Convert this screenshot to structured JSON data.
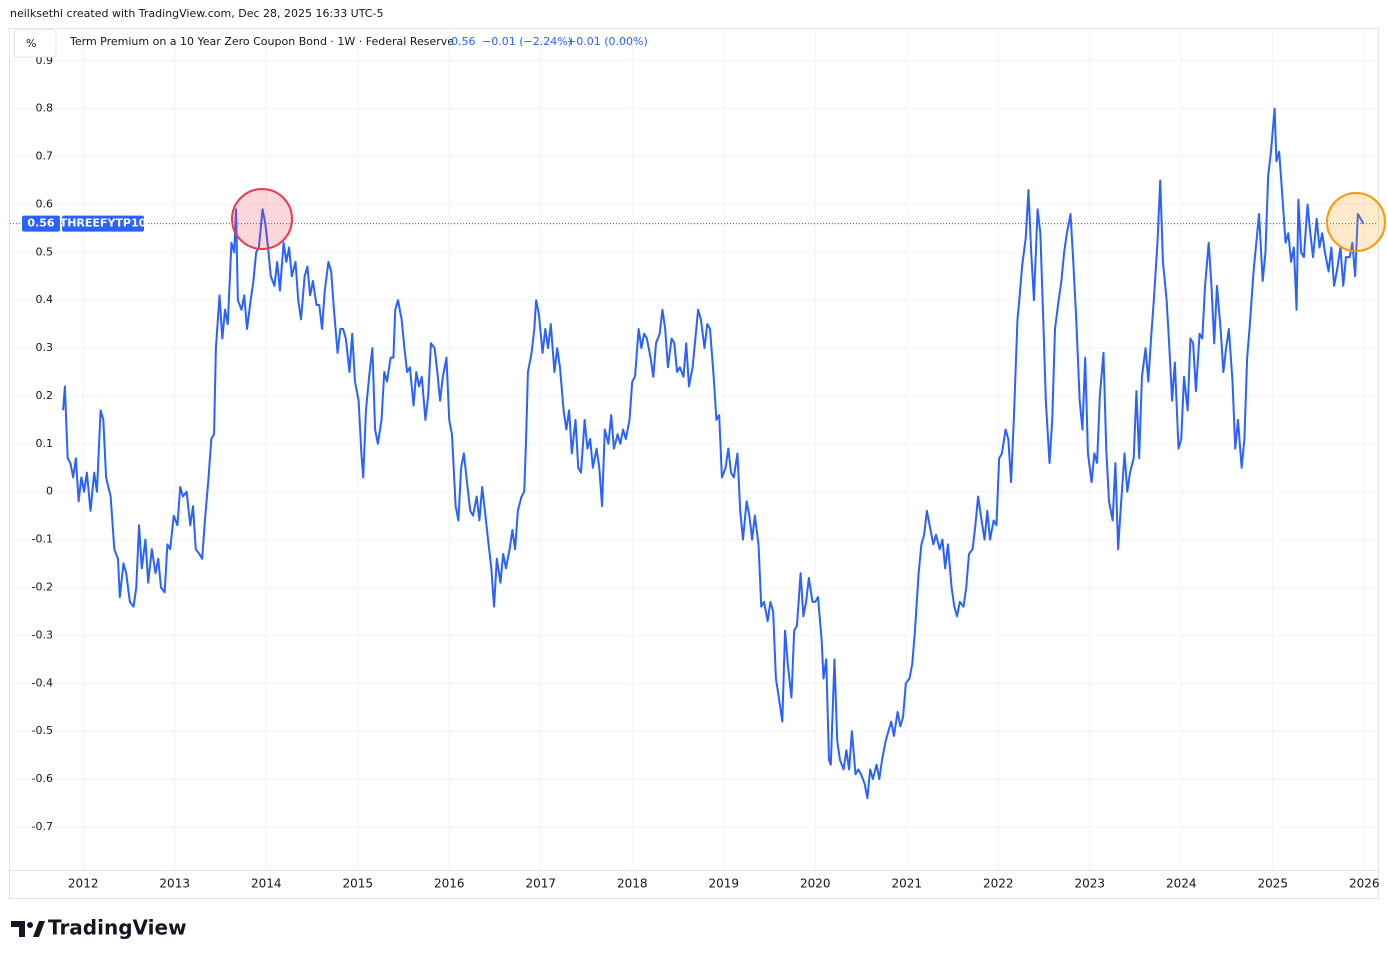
{
  "header": {
    "credit": "neilksethi created with TradingView.com, Dec 28, 2025 16:33 UTC-5"
  },
  "chart_data": {
    "type": "line",
    "unit_label": "%",
    "title": "Term Premium on a 10 Year Zero Coupon Bond · 1W · Federal Reserve",
    "last_value": 0.56,
    "change": "−0.01 (−2.24%)",
    "change_2": "+0.01 (0.00%)",
    "x": [
      2011.78,
      2011.8,
      2011.83,
      2011.86,
      2011.89,
      2011.92,
      2011.95,
      2011.98,
      2012.01,
      2012.04,
      2012.08,
      2012.12,
      2012.15,
      2012.19,
      2012.22,
      2012.25,
      2012.3,
      2012.34,
      2012.38,
      2012.4,
      2012.44,
      2012.47,
      2012.51,
      2012.55,
      2012.58,
      2012.61,
      2012.64,
      2012.68,
      2012.71,
      2012.75,
      2012.79,
      2012.82,
      2012.85,
      2012.89,
      2012.92,
      2012.95,
      2012.99,
      2013.03,
      2013.06,
      2013.09,
      2013.13,
      2013.17,
      2013.2,
      2013.23,
      2013.27,
      2013.3,
      2013.33,
      2013.37,
      2013.4,
      2013.43,
      2013.45,
      2013.49,
      2013.52,
      2013.55,
      2013.58,
      2013.62,
      2013.65,
      2013.67,
      2013.69,
      2013.73,
      2013.76,
      2013.79,
      2013.83,
      2013.86,
      2013.89,
      2013.92,
      2013.96,
      2013.99,
      2014.02,
      2014.05,
      2014.09,
      2014.12,
      2014.15,
      2014.19,
      2014.22,
      2014.25,
      2014.28,
      2014.32,
      2014.35,
      2014.38,
      2014.42,
      2014.45,
      2014.48,
      2014.51,
      2014.55,
      2014.58,
      2014.61,
      2014.64,
      2014.68,
      2014.71,
      2014.74,
      2014.78,
      2014.81,
      2014.84,
      2014.87,
      2014.91,
      2014.94,
      2014.97,
      2015.01,
      2015.04,
      2015.06,
      2015.09,
      2015.13,
      2015.16,
      2015.19,
      2015.22,
      2015.26,
      2015.29,
      2015.32,
      2015.36,
      2015.39,
      2015.41,
      2015.44,
      2015.48,
      2015.51,
      2015.54,
      2015.57,
      2015.61,
      2015.64,
      2015.67,
      2015.7,
      2015.74,
      2015.77,
      2015.8,
      2015.84,
      2015.87,
      2015.9,
      2015.93,
      2015.97,
      2016.0,
      2016.03,
      2016.07,
      2016.1,
      2016.13,
      2016.16,
      2016.2,
      2016.23,
      2016.26,
      2016.3,
      2016.33,
      2016.36,
      2016.39,
      2016.43,
      2016.46,
      2016.49,
      2016.52,
      2016.56,
      2016.59,
      2016.62,
      2016.66,
      2016.69,
      2016.72,
      2016.75,
      2016.79,
      2016.82,
      2016.84,
      2016.86,
      2016.9,
      2016.93,
      2016.95,
      2016.98,
      2017.02,
      2017.05,
      2017.08,
      2017.11,
      2017.15,
      2017.18,
      2017.21,
      2017.25,
      2017.28,
      2017.31,
      2017.34,
      2017.38,
      2017.41,
      2017.44,
      2017.48,
      2017.51,
      2017.54,
      2017.57,
      2017.61,
      2017.64,
      2017.67,
      2017.7,
      2017.74,
      2017.77,
      2017.8,
      2017.84,
      2017.87,
      2017.9,
      2017.93,
      2017.97,
      2018.0,
      2018.03,
      2018.07,
      2018.1,
      2018.13,
      2018.16,
      2018.2,
      2018.23,
      2018.26,
      2018.3,
      2018.33,
      2018.36,
      2018.39,
      2018.43,
      2018.46,
      2018.49,
      2018.52,
      2018.56,
      2018.59,
      2018.62,
      2018.66,
      2018.69,
      2018.72,
      2018.75,
      2018.79,
      2018.82,
      2018.85,
      2018.89,
      2018.92,
      2018.95,
      2018.98,
      2019.02,
      2019.05,
      2019.08,
      2019.11,
      2019.15,
      2019.18,
      2019.21,
      2019.25,
      2019.28,
      2019.31,
      2019.34,
      2019.38,
      2019.41,
      2019.44,
      2019.48,
      2019.51,
      2019.54,
      2019.57,
      2019.61,
      2019.64,
      2019.67,
      2019.7,
      2019.74,
      2019.77,
      2019.8,
      2019.84,
      2019.87,
      2019.9,
      2019.93,
      2019.97,
      2020.0,
      2020.03,
      2020.07,
      2020.09,
      2020.12,
      2020.15,
      2020.17,
      2020.21,
      2020.24,
      2020.27,
      2020.31,
      2020.34,
      2020.37,
      2020.4,
      2020.44,
      2020.47,
      2020.5,
      2020.54,
      2020.57,
      2020.6,
      2020.63,
      2020.67,
      2020.7,
      2020.73,
      2020.77,
      2020.8,
      2020.83,
      2020.86,
      2020.9,
      2020.93,
      2020.96,
      2020.99,
      2021.03,
      2021.06,
      2021.09,
      2021.13,
      2021.16,
      2021.19,
      2021.22,
      2021.26,
      2021.29,
      2021.32,
      2021.36,
      2021.39,
      2021.42,
      2021.45,
      2021.49,
      2021.52,
      2021.55,
      2021.58,
      2021.62,
      2021.65,
      2021.68,
      2021.72,
      2021.75,
      2021.78,
      2021.81,
      2021.85,
      2021.88,
      2021.91,
      2021.95,
      2021.98,
      2022.01,
      2022.04,
      2022.08,
      2022.11,
      2022.14,
      2022.17,
      2022.21,
      2022.23,
      2022.26,
      2022.3,
      2022.33,
      2022.36,
      2022.39,
      2022.43,
      2022.46,
      2022.49,
      2022.52,
      2022.56,
      2022.59,
      2022.62,
      2022.66,
      2022.69,
      2022.72,
      2022.75,
      2022.79,
      2022.82,
      2022.85,
      2022.89,
      2022.92,
      2022.95,
      2022.98,
      2023.02,
      2023.05,
      2023.08,
      2023.11,
      2023.15,
      2023.18,
      2023.21,
      2023.25,
      2023.28,
      2023.31,
      2023.34,
      2023.38,
      2023.41,
      2023.44,
      2023.48,
      2023.51,
      2023.54,
      2023.57,
      2023.61,
      2023.64,
      2023.67,
      2023.7,
      2023.74,
      2023.77,
      2023.8,
      2023.84,
      2023.87,
      2023.9,
      2023.93,
      2023.97,
      2024.0,
      2024.03,
      2024.07,
      2024.1,
      2024.13,
      2024.16,
      2024.2,
      2024.23,
      2024.26,
      2024.3,
      2024.33,
      2024.36,
      2024.39,
      2024.43,
      2024.46,
      2024.49,
      2024.52,
      2024.56,
      2024.59,
      2024.62,
      2024.66,
      2024.69,
      2024.72,
      2024.75,
      2024.79,
      2024.82,
      2024.85,
      2024.89,
      2024.92,
      2024.95,
      2024.98,
      2025.02,
      2025.04,
      2025.07,
      2025.1,
      2025.14,
      2025.17,
      2025.2,
      2025.23,
      2025.26,
      2025.28,
      2025.31,
      2025.34,
      2025.38,
      2025.41,
      2025.44,
      2025.48,
      2025.51,
      2025.54,
      2025.57,
      2025.61,
      2025.64,
      2025.67,
      2025.7,
      2025.74,
      2025.77,
      2025.8,
      2025.84,
      2025.87,
      2025.9,
      2025.93,
      2025.96,
      2025.99
    ],
    "series": [
      {
        "name": "THREEFYTP10",
        "color": "#2962ff",
        "values": [
          0.17,
          0.22,
          0.07,
          0.06,
          0.03,
          0.07,
          -0.02,
          0.03,
          0.0,
          0.04,
          -0.04,
          0.04,
          0.0,
          0.17,
          0.15,
          0.03,
          -0.01,
          -0.12,
          -0.14,
          -0.22,
          -0.15,
          -0.17,
          -0.23,
          -0.24,
          -0.2,
          -0.07,
          -0.16,
          -0.1,
          -0.19,
          -0.12,
          -0.17,
          -0.14,
          -0.2,
          -0.21,
          -0.11,
          -0.12,
          -0.05,
          -0.07,
          0.01,
          -0.01,
          0.0,
          -0.07,
          -0.03,
          -0.12,
          -0.13,
          -0.14,
          -0.06,
          0.03,
          0.11,
          0.12,
          0.3,
          0.41,
          0.32,
          0.38,
          0.35,
          0.52,
          0.5,
          0.59,
          0.4,
          0.38,
          0.41,
          0.34,
          0.4,
          0.44,
          0.5,
          0.51,
          0.59,
          0.56,
          0.51,
          0.45,
          0.43,
          0.48,
          0.42,
          0.52,
          0.48,
          0.51,
          0.45,
          0.48,
          0.4,
          0.36,
          0.45,
          0.47,
          0.41,
          0.44,
          0.39,
          0.39,
          0.34,
          0.42,
          0.48,
          0.46,
          0.38,
          0.29,
          0.34,
          0.34,
          0.32,
          0.25,
          0.33,
          0.23,
          0.19,
          0.08,
          0.03,
          0.17,
          0.25,
          0.3,
          0.13,
          0.1,
          0.15,
          0.25,
          0.23,
          0.28,
          0.28,
          0.38,
          0.4,
          0.36,
          0.3,
          0.25,
          0.26,
          0.18,
          0.25,
          0.22,
          0.24,
          0.15,
          0.2,
          0.31,
          0.3,
          0.25,
          0.19,
          0.24,
          0.28,
          0.15,
          0.12,
          -0.03,
          -0.06,
          0.05,
          0.08,
          0.01,
          -0.04,
          -0.05,
          -0.01,
          -0.06,
          0.01,
          -0.04,
          -0.11,
          -0.16,
          -0.24,
          -0.14,
          -0.19,
          -0.13,
          -0.16,
          -0.12,
          -0.08,
          -0.12,
          -0.04,
          -0.01,
          0.0,
          0.11,
          0.25,
          0.29,
          0.34,
          0.4,
          0.37,
          0.29,
          0.34,
          0.3,
          0.35,
          0.25,
          0.3,
          0.26,
          0.17,
          0.13,
          0.17,
          0.08,
          0.15,
          0.05,
          0.04,
          0.15,
          0.09,
          0.11,
          0.05,
          0.09,
          0.05,
          -0.03,
          0.13,
          0.1,
          0.16,
          0.09,
          0.12,
          0.1,
          0.13,
          0.11,
          0.15,
          0.23,
          0.24,
          0.34,
          0.3,
          0.33,
          0.32,
          0.28,
          0.24,
          0.31,
          0.33,
          0.38,
          0.34,
          0.26,
          0.32,
          0.31,
          0.25,
          0.26,
          0.24,
          0.31,
          0.22,
          0.26,
          0.32,
          0.38,
          0.36,
          0.3,
          0.35,
          0.34,
          0.24,
          0.15,
          0.16,
          0.03,
          0.05,
          0.09,
          0.04,
          0.03,
          0.08,
          -0.04,
          -0.1,
          -0.02,
          -0.05,
          -0.1,
          -0.05,
          -0.11,
          -0.24,
          -0.23,
          -0.27,
          -0.23,
          -0.25,
          -0.39,
          -0.44,
          -0.48,
          -0.29,
          -0.36,
          -0.43,
          -0.29,
          -0.28,
          -0.17,
          -0.26,
          -0.23,
          -0.18,
          -0.23,
          -0.23,
          -0.22,
          -0.31,
          -0.39,
          -0.35,
          -0.56,
          -0.57,
          -0.35,
          -0.52,
          -0.56,
          -0.58,
          -0.54,
          -0.58,
          -0.5,
          -0.59,
          -0.58,
          -0.59,
          -0.61,
          -0.64,
          -0.58,
          -0.6,
          -0.57,
          -0.6,
          -0.56,
          -0.52,
          -0.5,
          -0.48,
          -0.51,
          -0.46,
          -0.49,
          -0.47,
          -0.4,
          -0.39,
          -0.36,
          -0.29,
          -0.17,
          -0.11,
          -0.09,
          -0.04,
          -0.08,
          -0.11,
          -0.09,
          -0.12,
          -0.1,
          -0.16,
          -0.11,
          -0.2,
          -0.24,
          -0.26,
          -0.23,
          -0.24,
          -0.2,
          -0.13,
          -0.12,
          -0.07,
          -0.01,
          -0.05,
          -0.1,
          -0.04,
          -0.1,
          -0.06,
          -0.07,
          0.07,
          0.08,
          0.13,
          0.11,
          0.02,
          0.15,
          0.36,
          0.4,
          0.47,
          0.53,
          0.63,
          0.5,
          0.4,
          0.59,
          0.54,
          0.37,
          0.19,
          0.06,
          0.15,
          0.34,
          0.4,
          0.44,
          0.5,
          0.54,
          0.58,
          0.48,
          0.37,
          0.19,
          0.13,
          0.28,
          0.08,
          0.02,
          0.08,
          0.06,
          0.2,
          0.29,
          0.09,
          -0.02,
          -0.06,
          0.06,
          -0.12,
          -0.03,
          0.08,
          0.0,
          0.04,
          0.07,
          0.21,
          0.07,
          0.24,
          0.3,
          0.23,
          0.32,
          0.4,
          0.52,
          0.65,
          0.48,
          0.4,
          0.3,
          0.19,
          0.27,
          0.09,
          0.11,
          0.24,
          0.17,
          0.32,
          0.31,
          0.21,
          0.33,
          0.32,
          0.43,
          0.52,
          0.43,
          0.31,
          0.43,
          0.34,
          0.25,
          0.3,
          0.34,
          0.23,
          0.09,
          0.15,
          0.05,
          0.11,
          0.28,
          0.35,
          0.46,
          0.52,
          0.58,
          0.44,
          0.5,
          0.66,
          0.71,
          0.8,
          0.69,
          0.71,
          0.63,
          0.52,
          0.54,
          0.48,
          0.51,
          0.38,
          0.61,
          0.5,
          0.49,
          0.6,
          0.54,
          0.49,
          0.57,
          0.51,
          0.54,
          0.5,
          0.46,
          0.51,
          0.43,
          0.46,
          0.51,
          0.43,
          0.49,
          0.49,
          0.52,
          0.45,
          0.58,
          0.57,
          0.56
        ]
      }
    ],
    "xlim": [
      2011.2,
      2026.15
    ],
    "xticks": [
      2012,
      2013,
      2014,
      2015,
      2016,
      2017,
      2018,
      2019,
      2020,
      2021,
      2022,
      2023,
      2024,
      2025,
      2026
    ],
    "ylim": [
      -0.79,
      0.91
    ],
    "yticks": [
      -0.7,
      -0.6,
      -0.5,
      -0.4,
      -0.3,
      -0.2,
      -0.1,
      0,
      0.1,
      0.2,
      0.3,
      0.4,
      0.5,
      0.6,
      0.7,
      0.8,
      0.9
    ],
    "grid": true
  },
  "footer": {
    "brand": "TradingView"
  }
}
